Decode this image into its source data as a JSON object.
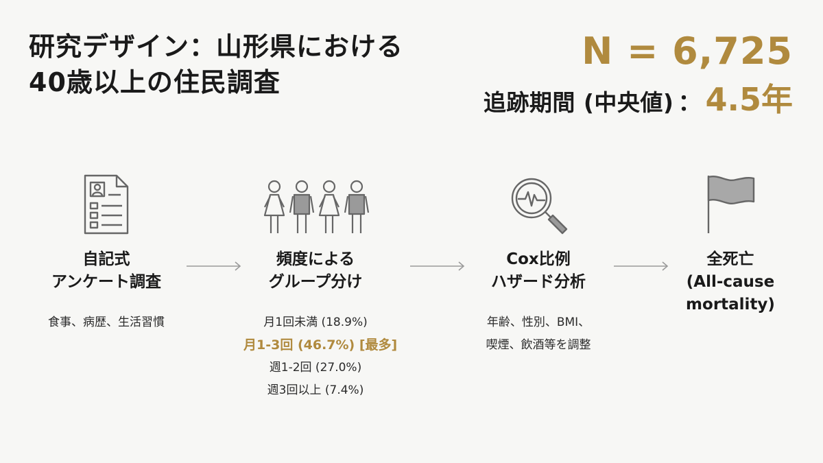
{
  "title": {
    "line1": "研究デザイン：山形県における",
    "line2": "40歳以上の住民調査"
  },
  "stats": {
    "n": "N = 6,725",
    "followup_label": "追跡期間 (中央値)",
    "followup_sep": "：",
    "followup_value": "4.5年"
  },
  "colors": {
    "accent": "#b08a3e",
    "text": "#1a1a1a",
    "icon": "#666666",
    "arrow": "#9a9a9a",
    "background": "#f7f7f5"
  },
  "steps": [
    {
      "icon": "questionnaire-icon",
      "heading_line1": "自記式",
      "heading_line2": "アンケート調査",
      "desc": [
        "食事、病歴、生活習慣"
      ]
    },
    {
      "icon": "people-group-icon",
      "heading_line1": "頻度による",
      "heading_line2": "グループ分け",
      "desc": [
        "月1回未満 (18.9%)",
        "月1-3回 (46.7%) [最多]",
        "週1-2回 (27.0%)",
        "週3回以上 (7.4%)"
      ],
      "highlight_index": 1
    },
    {
      "icon": "magnifier-analysis-icon",
      "heading_line1": "Cox比例",
      "heading_line2": "ハザード分析",
      "desc": [
        "年齢、性別、BMI、",
        "喫煙、飲酒等を調整"
      ]
    },
    {
      "icon": "flag-icon",
      "heading_line1": "全死亡",
      "heading_line2": "(All-cause",
      "heading_line3": "mortality)",
      "desc": []
    }
  ]
}
